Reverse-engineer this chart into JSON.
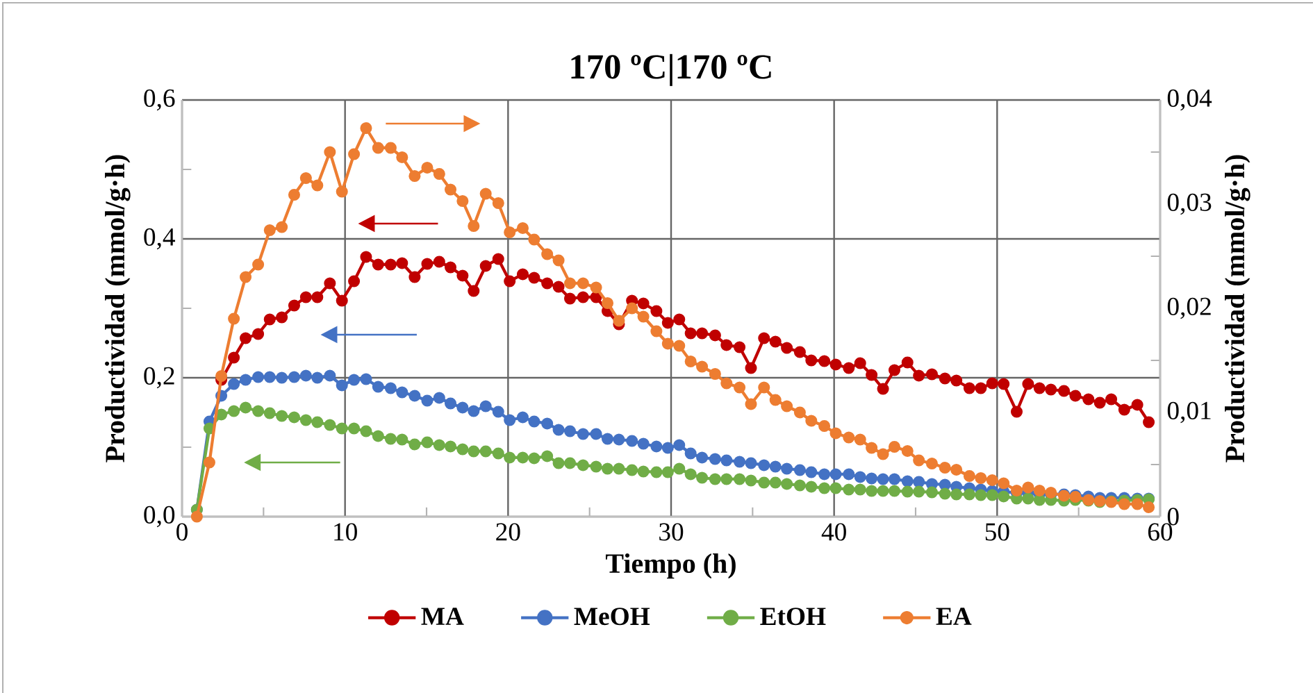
{
  "chart_data": {
    "type": "line",
    "title": "170 ºC|170 ºC",
    "xlabel": "Tiempo (h)",
    "ylabel": "Productividad (mmol/g·h)",
    "y2label": "Productividad (mmol/g·h)",
    "x": [
      0.91,
      1.68,
      2.41,
      3.18,
      3.9,
      4.67,
      5.38,
      6.12,
      6.88,
      7.6,
      8.3,
      9.07,
      9.81,
      10.55,
      11.29,
      12.03,
      12.8,
      13.5,
      14.27,
      15.04,
      15.78,
      16.47,
      17.21,
      17.89,
      18.63,
      19.4,
      20.1,
      20.9,
      21.6,
      22.4,
      23.1,
      23.8,
      24.6,
      25.4,
      26.1,
      26.8,
      27.6,
      28.3,
      29.1,
      29.8,
      30.5,
      31.2,
      31.9,
      32.7,
      33.4,
      34.2,
      34.9,
      35.7,
      36.4,
      37.1,
      37.9,
      38.6,
      39.4,
      40.1,
      40.9,
      41.6,
      42.3,
      43.0,
      43.7,
      44.5,
      45.2,
      46.0,
      46.8,
      47.5,
      48.3,
      49.0,
      49.7,
      50.4,
      51.2,
      51.9,
      52.6,
      53.3,
      54.1,
      54.8,
      55.6,
      56.3,
      57.0,
      57.8,
      58.6,
      59.3
    ],
    "series": [
      {
        "name": "MA",
        "color": "#c00000",
        "values": [
          null,
          null,
          0.197,
          0.229,
          0.257,
          0.263,
          0.284,
          0.287,
          0.304,
          0.316,
          0.316,
          0.336,
          0.311,
          0.339,
          0.374,
          0.363,
          0.363,
          0.365,
          0.345,
          0.364,
          0.367,
          0.359,
          0.347,
          0.325,
          0.361,
          0.371,
          0.339,
          0.349,
          0.344,
          0.336,
          0.331,
          0.314,
          0.316,
          0.316,
          0.296,
          0.277,
          0.311,
          0.307,
          0.296,
          0.279,
          0.284,
          0.264,
          0.264,
          0.261,
          0.247,
          0.244,
          0.214,
          0.257,
          0.252,
          0.243,
          0.237,
          0.225,
          0.224,
          0.219,
          0.214,
          0.221,
          0.204,
          0.184,
          0.211,
          0.222,
          0.203,
          0.205,
          0.199,
          0.196,
          0.185,
          0.185,
          0.192,
          0.191,
          0.151,
          0.191,
          0.185,
          0.183,
          0.181,
          0.174,
          0.169,
          0.164,
          0.169,
          0.154,
          0.161,
          0.136
        ]
      },
      {
        "name": "MeOH",
        "color": "#4472c4",
        "values": [
          0.01,
          0.137,
          0.174,
          0.191,
          0.197,
          0.201,
          0.201,
          0.2,
          0.201,
          0.203,
          0.2,
          0.203,
          0.189,
          0.197,
          0.198,
          0.187,
          0.185,
          0.179,
          0.174,
          0.167,
          0.171,
          0.163,
          0.157,
          0.152,
          0.159,
          0.151,
          0.139,
          0.143,
          0.137,
          0.134,
          0.125,
          0.123,
          0.119,
          0.119,
          0.112,
          0.111,
          0.109,
          0.105,
          0.101,
          0.099,
          0.103,
          0.091,
          0.085,
          0.083,
          0.081,
          0.079,
          0.077,
          0.074,
          0.072,
          0.069,
          0.067,
          0.064,
          0.061,
          0.061,
          0.061,
          0.057,
          0.055,
          0.054,
          0.054,
          0.051,
          0.05,
          0.047,
          0.046,
          0.043,
          0.041,
          0.039,
          0.037,
          0.036,
          0.034,
          0.034,
          0.032,
          0.032,
          0.032,
          0.031,
          0.029,
          0.027,
          0.027,
          0.027,
          0.026,
          0.026
        ]
      },
      {
        "name": "EtOH",
        "color": "#70ad47",
        "values": [
          0.01,
          0.127,
          0.147,
          0.152,
          0.157,
          0.152,
          0.149,
          0.145,
          0.143,
          0.139,
          0.136,
          0.132,
          0.127,
          0.127,
          0.123,
          0.116,
          0.112,
          0.111,
          0.104,
          0.107,
          0.103,
          0.101,
          0.097,
          0.094,
          0.094,
          0.091,
          0.085,
          0.085,
          0.084,
          0.087,
          0.077,
          0.077,
          0.074,
          0.072,
          0.069,
          0.069,
          0.067,
          0.065,
          0.064,
          0.064,
          0.069,
          0.061,
          0.056,
          0.054,
          0.054,
          0.054,
          0.052,
          0.049,
          0.049,
          0.047,
          0.045,
          0.043,
          0.041,
          0.041,
          0.039,
          0.039,
          0.037,
          0.037,
          0.037,
          0.036,
          0.036,
          0.035,
          0.033,
          0.032,
          0.032,
          0.031,
          0.031,
          0.029,
          0.026,
          0.026,
          0.024,
          0.024,
          0.023,
          0.024,
          0.023,
          0.021,
          0.022,
          0.023,
          0.024,
          0.025
        ]
      },
      {
        "name": "EA",
        "color": "#ed7d31",
        "axis": "y2",
        "values": [
          0,
          0.0052,
          0.0135,
          0.019,
          0.023,
          0.0242,
          0.0275,
          0.0278,
          0.0309,
          0.0325,
          0.0318,
          0.035,
          0.0312,
          0.0348,
          0.0373,
          0.0354,
          0.0354,
          0.0345,
          0.0327,
          0.0335,
          0.0329,
          0.0314,
          0.0303,
          0.0279,
          0.031,
          0.0301,
          0.0273,
          0.0277,
          0.0266,
          0.0252,
          0.0246,
          0.0224,
          0.0224,
          0.022,
          0.0205,
          0.0188,
          0.02,
          0.0192,
          0.0178,
          0.0166,
          0.0164,
          0.0149,
          0.0144,
          0.0137,
          0.0128,
          0.0124,
          0.0108,
          0.0124,
          0.0112,
          0.0106,
          0.01,
          0.0092,
          0.0087,
          0.008,
          0.0076,
          0.0074,
          0.0066,
          0.006,
          0.0067,
          0.0063,
          0.0054,
          0.0051,
          0.0047,
          0.0045,
          0.0039,
          0.0037,
          0.0035,
          0.0032,
          0.0025,
          0.0028,
          0.0025,
          0.0023,
          0.002,
          0.0019,
          0.0016,
          0.0015,
          0.0014,
          0.0012,
          0.0012,
          0.0009
        ]
      }
    ],
    "xlim": [
      0,
      60
    ],
    "xticks": [
      0,
      {
        "value": 5,
        "label": null
      },
      10,
      {
        "value": 15,
        "label": null
      },
      20,
      {
        "value": 25,
        "label": null
      },
      30,
      {
        "value": 35,
        "label": null
      },
      40,
      {
        "value": 45,
        "label": null
      },
      50,
      {
        "value": 55,
        "label": null
      },
      60
    ],
    "ylim": [
      0,
      0.6
    ],
    "yticks": [
      {
        "value": 0,
        "label": "0,0"
      },
      {
        "value": 0.1,
        "label": null
      },
      {
        "value": 0.2,
        "label": "0,2"
      },
      {
        "value": 0.3,
        "label": null
      },
      {
        "value": 0.4,
        "label": "0,4"
      },
      {
        "value": 0.5,
        "label": null
      },
      {
        "value": 0.6,
        "label": "0,6"
      }
    ],
    "y2lim": [
      0,
      0.04
    ],
    "y2ticks": [
      0,
      {
        "value": 0.005,
        "label": null
      },
      {
        "value": 0.01,
        "label": "0,01"
      },
      {
        "value": 0.015,
        "label": null
      },
      {
        "value": 0.02,
        "label": "0,02"
      },
      {
        "value": 0.025,
        "label": null
      },
      {
        "value": 0.03,
        "label": "0,03"
      },
      {
        "value": 0.035,
        "label": null
      },
      {
        "value": 0.04,
        "label": "0,04"
      }
    ],
    "grid": true,
    "legend": "bottom",
    "marker": "circle",
    "line_style": "solid"
  }
}
